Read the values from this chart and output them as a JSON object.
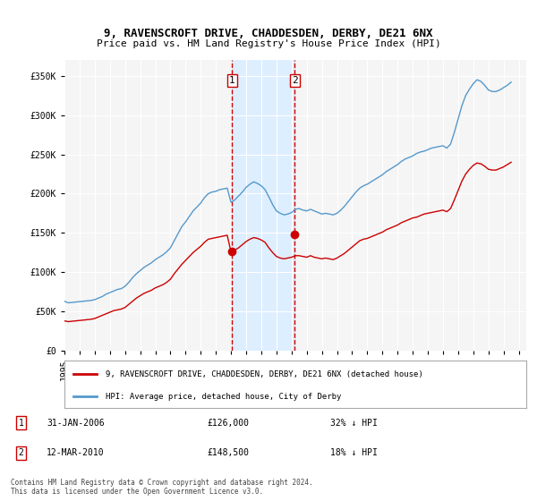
{
  "title": "9, RAVENSCROFT DRIVE, CHADDESDEN, DERBY, DE21 6NX",
  "subtitle": "Price paid vs. HM Land Registry's House Price Index (HPI)",
  "ylabel_ticks": [
    "£0",
    "£50K",
    "£100K",
    "£150K",
    "£200K",
    "£250K",
    "£300K",
    "£350K"
  ],
  "ytick_values": [
    0,
    50000,
    100000,
    150000,
    200000,
    250000,
    300000,
    350000
  ],
  "ylim": [
    0,
    370000
  ],
  "xlim_start": 1995.0,
  "xlim_end": 2025.5,
  "marker1": {
    "label": "1",
    "date_str": "31-JAN-2006",
    "year": 2006.08,
    "price": 126000,
    "hpi_pct": "32% ↓ HPI"
  },
  "marker2": {
    "label": "2",
    "date_str": "12-MAR-2010",
    "year": 2010.2,
    "price": 148500,
    "hpi_pct": "18% ↓ HPI"
  },
  "legend_label_red": "9, RAVENSCROFT DRIVE, CHADDESDEN, DERBY, DE21 6NX (detached house)",
  "legend_label_blue": "HPI: Average price, detached house, City of Derby",
  "footer": "Contains HM Land Registry data © Crown copyright and database right 2024.\nThis data is licensed under the Open Government Licence v3.0.",
  "red_color": "#cc0000",
  "blue_color": "#5599cc",
  "background_color": "#ffffff",
  "plot_bg_color": "#f5f5f5",
  "grid_color": "#ffffff",
  "shade_color": "#ddeeff",
  "hpi_data": {
    "years": [
      1995.0,
      1995.25,
      1995.5,
      1995.75,
      1996.0,
      1996.25,
      1996.5,
      1996.75,
      1997.0,
      1997.25,
      1997.5,
      1997.75,
      1998.0,
      1998.25,
      1998.5,
      1998.75,
      1999.0,
      1999.25,
      1999.5,
      1999.75,
      2000.0,
      2000.25,
      2000.5,
      2000.75,
      2001.0,
      2001.25,
      2001.5,
      2001.75,
      2002.0,
      2002.25,
      2002.5,
      2002.75,
      2003.0,
      2003.25,
      2003.5,
      2003.75,
      2004.0,
      2004.25,
      2004.5,
      2004.75,
      2005.0,
      2005.25,
      2005.5,
      2005.75,
      2006.0,
      2006.25,
      2006.5,
      2006.75,
      2007.0,
      2007.25,
      2007.5,
      2007.75,
      2008.0,
      2008.25,
      2008.5,
      2008.75,
      2009.0,
      2009.25,
      2009.5,
      2009.75,
      2010.0,
      2010.25,
      2010.5,
      2010.75,
      2011.0,
      2011.25,
      2011.5,
      2011.75,
      2012.0,
      2012.25,
      2012.5,
      2012.75,
      2013.0,
      2013.25,
      2013.5,
      2013.75,
      2014.0,
      2014.25,
      2014.5,
      2014.75,
      2015.0,
      2015.25,
      2015.5,
      2015.75,
      2016.0,
      2016.25,
      2016.5,
      2016.75,
      2017.0,
      2017.25,
      2017.5,
      2017.75,
      2018.0,
      2018.25,
      2018.5,
      2018.75,
      2019.0,
      2019.25,
      2019.5,
      2019.75,
      2020.0,
      2020.25,
      2020.5,
      2020.75,
      2021.0,
      2021.25,
      2021.5,
      2021.75,
      2022.0,
      2022.25,
      2022.5,
      2022.75,
      2023.0,
      2023.25,
      2023.5,
      2023.75,
      2024.0,
      2024.25,
      2024.5
    ],
    "values": [
      63000,
      61000,
      61500,
      62000,
      62500,
      63000,
      63500,
      64000,
      65000,
      67000,
      69000,
      72000,
      74000,
      76000,
      78000,
      79000,
      82000,
      87000,
      93000,
      98000,
      102000,
      106000,
      109000,
      112000,
      116000,
      119000,
      122000,
      126000,
      131000,
      140000,
      149000,
      158000,
      164000,
      171000,
      178000,
      183000,
      188000,
      195000,
      200000,
      202000,
      203000,
      205000,
      206000,
      207000,
      189000,
      192000,
      197000,
      202000,
      208000,
      212000,
      215000,
      213000,
      210000,
      205000,
      196000,
      186000,
      178000,
      175000,
      173000,
      174000,
      176000,
      180000,
      181000,
      179000,
      178000,
      180000,
      178000,
      176000,
      174000,
      175000,
      174000,
      173000,
      175000,
      179000,
      184000,
      190000,
      196000,
      202000,
      207000,
      210000,
      212000,
      215000,
      218000,
      221000,
      224000,
      228000,
      231000,
      234000,
      237000,
      241000,
      244000,
      246000,
      248000,
      251000,
      253000,
      254000,
      256000,
      258000,
      259000,
      260000,
      261000,
      258000,
      263000,
      278000,
      295000,
      312000,
      325000,
      333000,
      340000,
      345000,
      343000,
      338000,
      332000,
      330000,
      330000,
      332000,
      335000,
      338000,
      342000
    ]
  },
  "red_data": {
    "years": [
      1995.0,
      1995.25,
      1995.5,
      1995.75,
      1996.0,
      1996.25,
      1996.5,
      1996.75,
      1997.0,
      1997.25,
      1997.5,
      1997.75,
      1998.0,
      1998.25,
      1998.5,
      1998.75,
      1999.0,
      1999.25,
      1999.5,
      1999.75,
      2000.0,
      2000.25,
      2000.5,
      2000.75,
      2001.0,
      2001.25,
      2001.5,
      2001.75,
      2002.0,
      2002.25,
      2002.5,
      2002.75,
      2003.0,
      2003.25,
      2003.5,
      2003.75,
      2004.0,
      2004.25,
      2004.5,
      2004.75,
      2005.0,
      2005.25,
      2005.5,
      2005.75,
      2006.0,
      2006.25,
      2006.5,
      2006.75,
      2007.0,
      2007.25,
      2007.5,
      2007.75,
      2008.0,
      2008.25,
      2008.5,
      2008.75,
      2009.0,
      2009.25,
      2009.5,
      2009.75,
      2010.0,
      2010.25,
      2010.5,
      2010.75,
      2011.0,
      2011.25,
      2011.5,
      2011.75,
      2012.0,
      2012.25,
      2012.5,
      2012.75,
      2013.0,
      2013.25,
      2013.5,
      2013.75,
      2014.0,
      2014.25,
      2014.5,
      2014.75,
      2015.0,
      2015.25,
      2015.5,
      2015.75,
      2016.0,
      2016.25,
      2016.5,
      2016.75,
      2017.0,
      2017.25,
      2017.5,
      2017.75,
      2018.0,
      2018.25,
      2018.5,
      2018.75,
      2019.0,
      2019.25,
      2019.5,
      2019.75,
      2020.0,
      2020.25,
      2020.5,
      2020.75,
      2021.0,
      2021.25,
      2021.5,
      2021.75,
      2022.0,
      2022.25,
      2022.5,
      2022.75,
      2023.0,
      2023.25,
      2023.5,
      2023.75,
      2024.0,
      2024.25,
      2024.5
    ],
    "values": [
      38000,
      37000,
      37500,
      38000,
      38500,
      39000,
      39500,
      40000,
      41000,
      43000,
      45000,
      47000,
      49000,
      51000,
      52000,
      53000,
      55000,
      59000,
      63000,
      67000,
      70000,
      73000,
      75000,
      77000,
      80000,
      82000,
      84000,
      87000,
      91000,
      98000,
      104000,
      110000,
      115000,
      120000,
      125000,
      129000,
      133000,
      138000,
      142000,
      143000,
      144000,
      145000,
      146000,
      147000,
      126000,
      128000,
      131000,
      135000,
      139000,
      142000,
      144000,
      143000,
      141000,
      138000,
      131000,
      125000,
      120000,
      118000,
      117000,
      118000,
      119000,
      121000,
      121000,
      120000,
      119000,
      121000,
      119000,
      118000,
      117000,
      118000,
      117000,
      116000,
      118000,
      121000,
      124000,
      128000,
      132000,
      136000,
      140000,
      142000,
      143000,
      145000,
      147000,
      149000,
      151000,
      154000,
      156000,
      158000,
      160000,
      163000,
      165000,
      167000,
      169000,
      170000,
      172000,
      174000,
      175000,
      176000,
      177000,
      178000,
      179000,
      177000,
      181000,
      192000,
      204000,
      216000,
      225000,
      231000,
      236000,
      239000,
      238000,
      235000,
      231000,
      230000,
      230000,
      232000,
      234000,
      237000,
      240000
    ]
  },
  "xtick_years": [
    1995,
    1996,
    1997,
    1998,
    1999,
    2000,
    2001,
    2002,
    2003,
    2004,
    2005,
    2006,
    2007,
    2008,
    2009,
    2010,
    2011,
    2012,
    2013,
    2014,
    2015,
    2016,
    2017,
    2018,
    2019,
    2020,
    2021,
    2022,
    2023,
    2024,
    2025
  ]
}
